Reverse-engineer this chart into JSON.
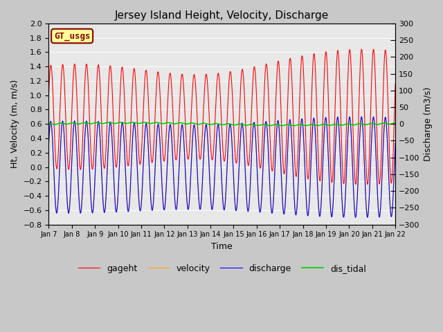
{
  "title": "Jersey Island Height, Velocity, Discharge",
  "xlabel": "Time",
  "ylabel_left": "Ht, Velocity (m, m/s)",
  "ylabel_right": "Discharge (m3/s)",
  "ylim_left": [
    -0.8,
    2.0
  ],
  "ylim_right": [
    -300,
    300
  ],
  "duration_days": 15,
  "n_points": 5000,
  "tidal_period_hours": 12.42,
  "x_tick_labels": [
    "Jan 7",
    "Jan 8",
    "Jan 9",
    "Jan 10",
    "Jan 11",
    "Jan 12",
    "Jan 13",
    "Jan 14",
    "Jan 15",
    "Jan 16",
    "Jan 17",
    "Jan 18",
    "Jan 19",
    "Jan 20",
    "Jan 21",
    "Jan 22"
  ],
  "legend_labels": [
    "gageht",
    "velocity",
    "discharge",
    "dis_tidal"
  ],
  "gageht_color": "#ff0000",
  "velocity_color": "#ffa500",
  "discharge_color": "#0000ff",
  "dis_tidal_color": "#00cc00",
  "gt_usgs_label": "GT_usgs",
  "gt_usgs_text_color": "#8b0000",
  "gt_usgs_bg_color": "#ffff99",
  "gt_usgs_border_color": "#8b0000",
  "fig_facecolor": "#c8c8c8",
  "plot_facecolor": "#e8e8e8",
  "left_ytick_step": 0.2,
  "right_ytick_step": 50,
  "linewidth": 0.8,
  "distidal_linewidth": 1.2
}
